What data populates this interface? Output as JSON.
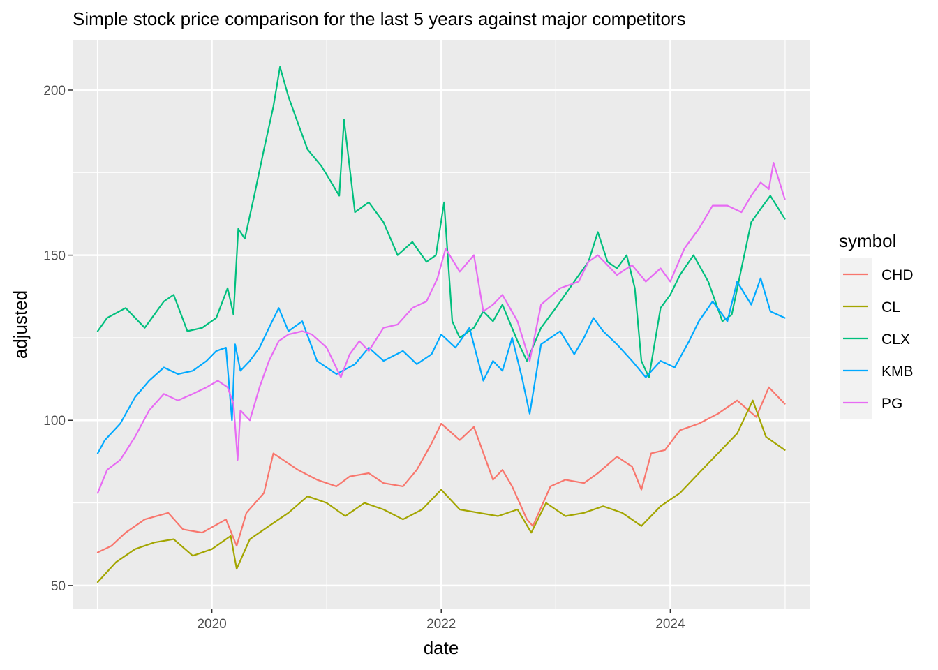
{
  "chart_data": {
    "type": "line",
    "title": "Simple stock price comparison for the last 5 years against major competitors",
    "xlabel": "date",
    "ylabel": "adjusted",
    "xlim": [
      "2018-10-14",
      "2025-03-20"
    ],
    "ylim": [
      43,
      215
    ],
    "x_ticks": [
      "2020",
      "2022",
      "2024"
    ],
    "x_tick_dates": [
      "2020-01-01",
      "2022-01-01",
      "2024-01-01"
    ],
    "y_ticks": [
      50,
      100,
      150,
      200
    ],
    "grid": true,
    "legend": {
      "title": "symbol",
      "position": "right"
    },
    "series": [
      {
        "name": "CHD",
        "color": "#F8766D",
        "x": [
          "2019-01-02",
          "2019-02-15",
          "2019-04-01",
          "2019-06-01",
          "2019-08-15",
          "2019-10-01",
          "2019-12-01",
          "2020-02-15",
          "2020-03-20",
          "2020-04-20",
          "2020-06-15",
          "2020-07-15",
          "2020-08-15",
          "2020-10-01",
          "2020-12-01",
          "2021-02-01",
          "2021-03-15",
          "2021-05-15",
          "2021-07-01",
          "2021-09-01",
          "2021-10-15",
          "2021-12-01",
          "2022-01-01",
          "2022-03-01",
          "2022-04-15",
          "2022-06-15",
          "2022-07-15",
          "2022-08-15",
          "2022-10-01",
          "2022-10-20",
          "2022-12-15",
          "2023-02-01",
          "2023-04-01",
          "2023-05-15",
          "2023-07-15",
          "2023-09-01",
          "2023-10-01",
          "2023-11-01",
          "2023-12-15",
          "2024-02-01",
          "2024-04-01",
          "2024-06-01",
          "2024-08-01",
          "2024-10-01",
          "2024-11-10",
          "2024-12-31"
        ],
        "values": [
          60,
          62,
          66,
          70,
          72,
          67,
          66,
          70,
          62,
          72,
          78,
          90,
          88,
          85,
          82,
          80,
          83,
          84,
          81,
          80,
          85,
          93,
          99,
          94,
          98,
          82,
          85,
          80,
          70,
          68,
          80,
          82,
          81,
          84,
          89,
          86,
          79,
          90,
          91,
          97,
          99,
          102,
          106,
          101,
          110,
          105
        ]
      },
      {
        "name": "CL",
        "color": "#A3A500",
        "x": [
          "2019-01-02",
          "2019-03-01",
          "2019-05-01",
          "2019-07-01",
          "2019-09-01",
          "2019-11-01",
          "2020-01-01",
          "2020-03-01",
          "2020-03-20",
          "2020-05-01",
          "2020-07-01",
          "2020-09-01",
          "2020-11-01",
          "2021-01-01",
          "2021-03-01",
          "2021-05-01",
          "2021-07-01",
          "2021-09-01",
          "2021-11-01",
          "2022-01-01",
          "2022-03-01",
          "2022-05-01",
          "2022-07-01",
          "2022-09-01",
          "2022-10-15",
          "2022-12-01",
          "2023-02-01",
          "2023-04-01",
          "2023-06-01",
          "2023-08-01",
          "2023-10-01",
          "2023-12-01",
          "2024-02-01",
          "2024-04-01",
          "2024-06-01",
          "2024-08-01",
          "2024-09-20",
          "2024-11-01",
          "2024-12-31"
        ],
        "values": [
          51,
          57,
          61,
          63,
          64,
          59,
          61,
          65,
          55,
          64,
          68,
          72,
          77,
          75,
          71,
          75,
          73,
          70,
          73,
          79,
          73,
          72,
          71,
          73,
          66,
          75,
          71,
          72,
          74,
          72,
          68,
          74,
          78,
          84,
          90,
          96,
          106,
          95,
          91
        ]
      },
      {
        "name": "CLX",
        "color": "#00BF7D",
        "x": [
          "2019-01-02",
          "2019-02-01",
          "2019-04-01",
          "2019-06-01",
          "2019-08-01",
          "2019-09-01",
          "2019-10-15",
          "2019-12-01",
          "2020-01-15",
          "2020-02-20",
          "2020-03-10",
          "2020-03-25",
          "2020-04-15",
          "2020-05-15",
          "2020-06-15",
          "2020-07-15",
          "2020-08-05",
          "2020-09-01",
          "2020-10-01",
          "2020-11-01",
          "2020-12-15",
          "2021-02-10",
          "2021-02-25",
          "2021-04-01",
          "2021-05-15",
          "2021-07-01",
          "2021-08-15",
          "2021-10-01",
          "2021-11-15",
          "2021-12-15",
          "2022-01-10",
          "2022-02-05",
          "2022-03-01",
          "2022-04-15",
          "2022-05-15",
          "2022-06-15",
          "2022-07-15",
          "2022-09-01",
          "2022-10-01",
          "2022-11-15",
          "2023-01-01",
          "2023-03-01",
          "2023-04-15",
          "2023-05-15",
          "2023-06-15",
          "2023-07-15",
          "2023-08-15",
          "2023-09-10",
          "2023-10-01",
          "2023-10-25",
          "2023-12-01",
          "2024-01-01",
          "2024-02-01",
          "2024-03-15",
          "2024-05-01",
          "2024-06-15",
          "2024-07-15",
          "2024-08-15",
          "2024-09-15",
          "2024-10-15",
          "2024-11-15",
          "2024-12-31"
        ],
        "values": [
          127,
          131,
          134,
          128,
          136,
          138,
          127,
          128,
          131,
          140,
          132,
          158,
          155,
          168,
          182,
          195,
          207,
          198,
          190,
          182,
          177,
          168,
          191,
          163,
          166,
          160,
          150,
          154,
          148,
          150,
          166,
          130,
          125,
          128,
          133,
          130,
          135,
          124,
          118,
          128,
          134,
          142,
          148,
          157,
          148,
          146,
          150,
          140,
          118,
          113,
          134,
          138,
          144,
          150,
          142,
          130,
          132,
          146,
          160,
          164,
          168,
          161
        ]
      },
      {
        "name": "KMB",
        "color": "#00A9FF",
        "x": [
          "2019-01-02",
          "2019-01-25",
          "2019-03-15",
          "2019-05-01",
          "2019-06-15",
          "2019-08-01",
          "2019-09-15",
          "2019-11-01",
          "2019-12-15",
          "2020-01-15",
          "2020-02-15",
          "2020-03-05",
          "2020-03-15",
          "2020-04-01",
          "2020-05-01",
          "2020-06-01",
          "2020-07-01",
          "2020-08-01",
          "2020-09-01",
          "2020-10-15",
          "2020-12-01",
          "2021-02-01",
          "2021-04-01",
          "2021-05-15",
          "2021-07-01",
          "2021-09-01",
          "2021-10-15",
          "2021-12-01",
          "2022-01-01",
          "2022-02-15",
          "2022-04-01",
          "2022-05-15",
          "2022-06-15",
          "2022-07-15",
          "2022-08-15",
          "2022-09-15",
          "2022-10-10",
          "2022-11-15",
          "2023-01-15",
          "2023-03-01",
          "2023-04-01",
          "2023-05-01",
          "2023-06-01",
          "2023-07-15",
          "2023-09-01",
          "2023-10-15",
          "2023-12-01",
          "2024-01-15",
          "2024-03-01",
          "2024-04-01",
          "2024-05-15",
          "2024-07-01",
          "2024-08-01",
          "2024-09-15",
          "2024-10-15",
          "2024-11-15",
          "2024-12-31"
        ],
        "values": [
          90,
          94,
          99,
          107,
          112,
          116,
          114,
          115,
          118,
          121,
          122,
          100,
          123,
          115,
          118,
          122,
          128,
          134,
          127,
          130,
          118,
          114,
          117,
          122,
          118,
          121,
          117,
          120,
          126,
          122,
          128,
          112,
          118,
          115,
          125,
          113,
          102,
          123,
          127,
          120,
          125,
          131,
          127,
          123,
          118,
          113,
          118,
          116,
          124,
          130,
          136,
          130,
          142,
          135,
          143,
          133,
          131
        ]
      },
      {
        "name": "PG",
        "color": "#E76BF3",
        "x": [
          "2019-01-02",
          "2019-02-01",
          "2019-03-15",
          "2019-05-01",
          "2019-06-15",
          "2019-08-01",
          "2019-09-15",
          "2019-11-01",
          "2019-12-15",
          "2020-01-20",
          "2020-02-20",
          "2020-03-10",
          "2020-03-23",
          "2020-04-01",
          "2020-05-01",
          "2020-06-01",
          "2020-07-01",
          "2020-08-01",
          "2020-09-01",
          "2020-10-15",
          "2020-11-15",
          "2021-01-01",
          "2021-02-15",
          "2021-03-15",
          "2021-04-15",
          "2021-05-15",
          "2021-07-01",
          "2021-08-15",
          "2021-10-01",
          "2021-11-15",
          "2021-12-20",
          "2022-01-15",
          "2022-03-01",
          "2022-04-15",
          "2022-05-15",
          "2022-06-15",
          "2022-07-15",
          "2022-09-01",
          "2022-10-10",
          "2022-11-15",
          "2023-01-15",
          "2023-03-15",
          "2023-04-15",
          "2023-05-15",
          "2023-07-15",
          "2023-09-01",
          "2023-10-15",
          "2023-12-01",
          "2024-01-01",
          "2024-02-15",
          "2024-04-01",
          "2024-05-15",
          "2024-07-01",
          "2024-08-15",
          "2024-09-15",
          "2024-10-15",
          "2024-11-10",
          "2024-11-25",
          "2024-12-31"
        ],
        "values": [
          78,
          85,
          88,
          95,
          103,
          108,
          106,
          108,
          110,
          112,
          110,
          105,
          88,
          103,
          100,
          110,
          118,
          124,
          126,
          127,
          126,
          122,
          113,
          120,
          124,
          121,
          128,
          129,
          134,
          136,
          143,
          152,
          145,
          150,
          133,
          135,
          138,
          130,
          118,
          135,
          140,
          142,
          148,
          150,
          144,
          147,
          142,
          146,
          142,
          152,
          158,
          165,
          165,
          163,
          168,
          172,
          170,
          178,
          167
        ]
      }
    ]
  }
}
